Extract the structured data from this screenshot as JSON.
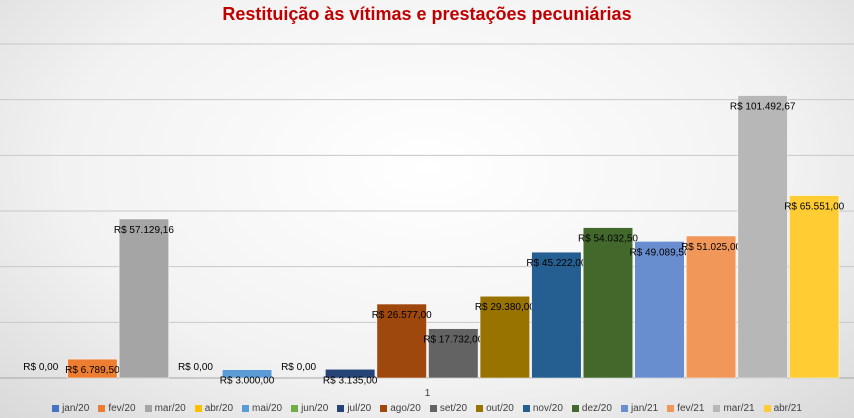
{
  "chart_data": {
    "type": "bar",
    "title": "Restituição às vítimas e prestações pecuniárias",
    "categories": [
      "1"
    ],
    "ylim": [
      0,
      120000
    ],
    "grid": true,
    "legend_position": "bottom",
    "series": [
      {
        "name": "jan/20",
        "value": 0,
        "label": "R$ 0,00",
        "color": "#4472c4"
      },
      {
        "name": "fev/20",
        "value": 6789.5,
        "label": "R$ 6.789,50",
        "color": "#ed7d31"
      },
      {
        "name": "mar/20",
        "value": 57129.16,
        "label": "R$ 57.129,16",
        "color": "#a5a5a5"
      },
      {
        "name": "abr/20",
        "value": 0,
        "label": "R$ 0,00",
        "color": "#ffc000"
      },
      {
        "name": "mai/20",
        "value": 3000,
        "label": "R$ 3.000,00",
        "color": "#5b9bd5"
      },
      {
        "name": "jun/20",
        "value": 0,
        "label": "R$ 0,00",
        "color": "#70ad47"
      },
      {
        "name": "jul/20",
        "value": 3135,
        "label": "R$ 3.135,00",
        "color": "#264478"
      },
      {
        "name": "ago/20",
        "value": 26577,
        "label": "R$ 26.577,00",
        "color": "#9e480e"
      },
      {
        "name": "set/20",
        "value": 17732,
        "label": "R$ 17.732,00",
        "color": "#636363"
      },
      {
        "name": "out/20",
        "value": 29380,
        "label": "R$ 29.380,00",
        "color": "#997300"
      },
      {
        "name": "nov/20",
        "value": 45222,
        "label": "R$ 45.222,00",
        "color": "#255e91"
      },
      {
        "name": "dez/20",
        "value": 54032.5,
        "label": "R$ 54.032,50",
        "color": "#43682b"
      },
      {
        "name": "jan/21",
        "value": 49089.5,
        "label": "R$ 49.089,50",
        "color": "#698ed0"
      },
      {
        "name": "fev/21",
        "value": 51025,
        "label": "R$ 51.025,00",
        "color": "#f1975a"
      },
      {
        "name": "mar/21",
        "value": 101492.67,
        "label": "R$ 101.492,67",
        "color": "#b7b7b7"
      },
      {
        "name": "abr/21",
        "value": 65551,
        "label": "R$ 65.551,00",
        "color": "#ffcd33"
      }
    ]
  }
}
